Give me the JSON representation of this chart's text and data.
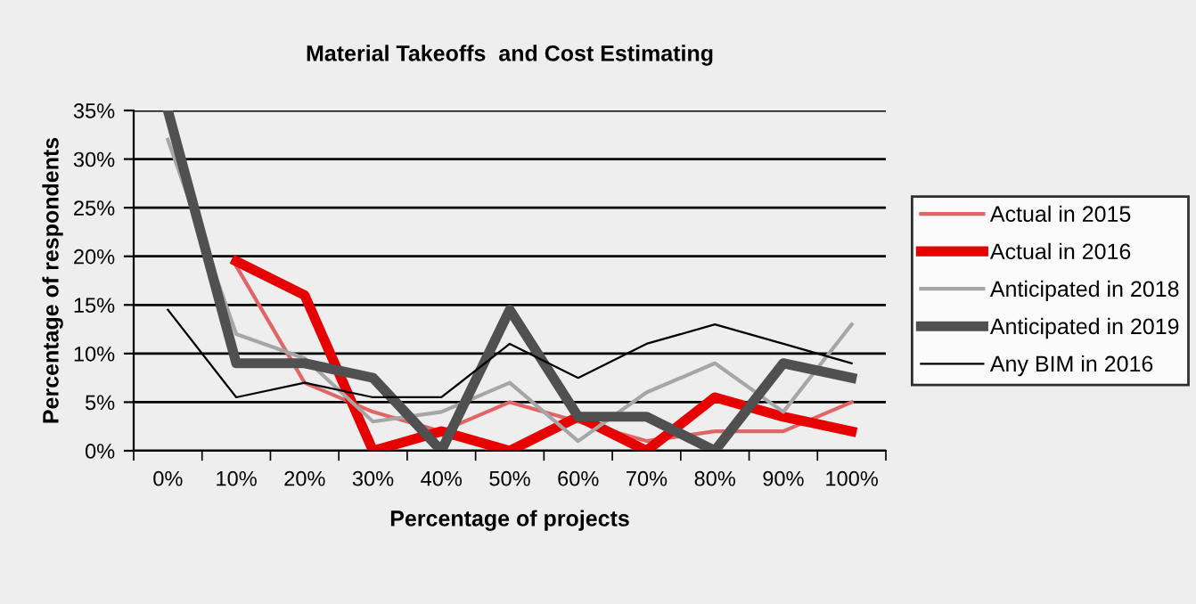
{
  "chart_data": {
    "type": "line",
    "title": "Material Takeoffs  and Cost Estimating",
    "xlabel": "Percentage of projects",
    "ylabel": "Percentage of respondents",
    "categories": [
      "0%",
      "10%",
      "20%",
      "30%",
      "40%",
      "50%",
      "60%",
      "70%",
      "80%",
      "90%",
      "100%"
    ],
    "series": [
      {
        "name": "Actual in 2015",
        "color": "#e06666",
        "values": [
          null,
          19,
          7,
          4,
          2,
          5,
          3,
          1,
          2,
          2,
          5
        ]
      },
      {
        "name": "Actual in 2016",
        "color": "#e60000",
        "values": [
          null,
          19.5,
          16,
          0,
          2,
          0,
          3.5,
          0,
          5.5,
          3.5,
          2
        ]
      },
      {
        "name": "Anticipated in 2018",
        "color": "#a6a6a6",
        "values": [
          32,
          12,
          9.5,
          3,
          4,
          7,
          1,
          6,
          9,
          4,
          13
        ]
      },
      {
        "name": "Anticipated in 2019",
        "color": "#505050",
        "values": [
          35,
          9,
          9,
          7.5,
          0,
          14.5,
          3.5,
          3.5,
          0,
          9,
          7.5
        ]
      },
      {
        "name": "Any BIM in 2016",
        "color": "#000000",
        "values": [
          14.5,
          5.5,
          7,
          5.5,
          5.5,
          11,
          7.5,
          11,
          13,
          11,
          9
        ]
      }
    ],
    "ylim": [
      0,
      35
    ],
    "yticks": [
      {
        "value": 0,
        "label": "0%"
      },
      {
        "value": 5,
        "label": "5%"
      },
      {
        "value": 10,
        "label": "10%"
      },
      {
        "value": 15,
        "label": "15%"
      },
      {
        "value": 20,
        "label": "20%"
      },
      {
        "value": 25,
        "label": "25%"
      },
      {
        "value": 30,
        "label": "30%"
      },
      {
        "value": 35,
        "label": "35%"
      }
    ],
    "grid": "y",
    "legend": "right",
    "marker": "none",
    "line_style": "solid"
  }
}
